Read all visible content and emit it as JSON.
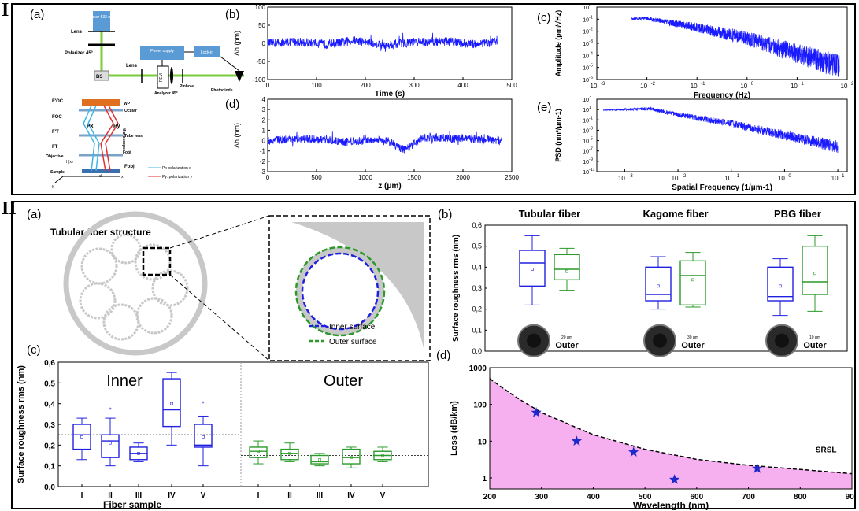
{
  "section_labels": {
    "top": "I",
    "bottom": "II"
  },
  "colors": {
    "signal": "#1a1aff",
    "inner": "#2020e0",
    "outer": "#2a9a2a",
    "loss_fill": "#f7b0ef",
    "grey": "#c8c8c8"
  },
  "top": {
    "a": {
      "label": "(a)",
      "texts": {
        "laser": "Laser 532 nm",
        "lens1": "Lens",
        "polarizer": "Polarizer 45°",
        "lens2": "Lens",
        "bs": "BS",
        "power": "Power supply",
        "lockin": "Lock-in",
        "pem": "PEM",
        "analyzer": "Analyzer 45°",
        "pinhole": "Pinhole",
        "photodiode": "Photodiode",
        "wp": "WP",
        "foc_p": "F'OC",
        "foc": "FOC",
        "ocular": "Ocular",
        "ft_p": "F'T",
        "tube": "Tube lens",
        "ft": "FT",
        "microscope": "Microscope",
        "objective": "Objective",
        "fobj1": "Fobj",
        "hx": "h(x)",
        "fobj2": "Fobj",
        "sample": "Sample",
        "px": "Px",
        "py": "Py",
        "d": "d",
        "legend_px": "Px polarization x",
        "legend_py": "Py: polarization y",
        "y": "y",
        "x": "x"
      }
    },
    "b": {
      "label": "(b)",
      "chart_data": {
        "type": "line",
        "xlabel": "Time (s)",
        "ylabel": "Δh (pm)",
        "xlim": [
          0,
          500
        ],
        "ylim": [
          -100,
          100
        ],
        "xticks": [
          "0",
          "100",
          "200",
          "300",
          "400",
          "500"
        ],
        "yticks": [
          "100",
          "50",
          "0",
          "-50",
          "-100"
        ],
        "series": [
          {
            "x": [
              0,
              60,
              120,
              180,
              240,
              300,
              360,
              420,
              470
            ],
            "values": [
              0,
              5,
              -3,
              8,
              -4,
              3,
              6,
              -2,
              4
            ],
            "noise_amplitude": 12
          }
        ]
      }
    },
    "c": {
      "label": "(c)",
      "chart_data": {
        "type": "line",
        "xlabel": "Frequency (Hz)",
        "ylabel": "Amplitude (pm/√Hz)",
        "scale": "log-log",
        "xlim": [
          0.001,
          100
        ],
        "ylim": [
          1e-06,
          10
        ],
        "xticks": [
          "10-3",
          "10-2",
          "10-1",
          "100",
          "101",
          "102"
        ],
        "yticks": [
          "100",
          "10-1",
          "10-2",
          "10-3",
          "10-4",
          "10-5",
          "10-6"
        ],
        "series": [
          {
            "x": [
              0.005,
              0.01,
              0.1,
              1,
              10,
              70
            ],
            "values": [
              1,
              1.2,
              0.3,
              0.05,
              0.003,
              0.0003
            ]
          }
        ]
      }
    },
    "d": {
      "label": "(d)",
      "chart_data": {
        "type": "line",
        "xlabel": "z (μm)",
        "ylabel": "Δh (nm)",
        "xlim": [
          0,
          2500
        ],
        "ylim": [
          -3,
          4
        ],
        "xticks": [
          "0",
          "500",
          "1000",
          "1500",
          "2000",
          "2500"
        ],
        "yticks": [
          "4",
          "3",
          "2",
          "1",
          "0",
          "-1",
          "-2",
          "-3"
        ],
        "series": [
          {
            "x": [
              0,
              400,
              800,
              1200,
              1400,
              1600,
              2000,
              2400
            ],
            "values": [
              0,
              0.2,
              -0.1,
              0.1,
              -0.9,
              0.3,
              0.2,
              0
            ],
            "noise_amplitude": 0.4
          }
        ]
      }
    },
    "e": {
      "label": "(e)",
      "chart_data": {
        "type": "line",
        "xlabel": "Spatial Frequency (1/μm-1)",
        "ylabel": "PSD (nm²/μm-1)",
        "scale": "log-log",
        "xlim": [
          0.0003,
          15
        ],
        "ylim": [
          1e-11,
          1000
        ],
        "xticks": [
          "10-3",
          "10-2",
          "10-1",
          "100",
          "101"
        ],
        "yticks": [
          "103",
          "101",
          "10-1",
          "10-3",
          "10-5",
          "10-7",
          "10-9",
          "10-11"
        ],
        "series": [
          {
            "x": [
              0.0004,
              0.003,
              0.01,
              0.1,
              1,
              10
            ],
            "values": [
              10,
              30,
              3,
              0.1,
              0.001,
              1e-05
            ]
          }
        ]
      }
    }
  },
  "bottom": {
    "a": {
      "label": "(a)",
      "title": "Tubular fiber structure",
      "legend": [
        {
          "label": "Inner surface",
          "color": "#2020e0"
        },
        {
          "label": "Outer surface",
          "color": "#2a9a2a"
        }
      ]
    },
    "b": {
      "label": "(b)",
      "chart_data": {
        "type": "box",
        "ylabel": "Surface roughness rms (nm)",
        "ylim": [
          0,
          0.6
        ],
        "yticks": [
          "0,0",
          "0,1",
          "0,2",
          "0,3",
          "0,4",
          "0,5",
          "0,6"
        ],
        "groups": [
          {
            "title": "Tubular fiber",
            "scale_label": "20 μm",
            "boxes": [
              {
                "label": "Inner",
                "min": 0.22,
                "q1": 0.31,
                "median": 0.42,
                "q3": 0.48,
                "max": 0.55,
                "mean": 0.39
              },
              {
                "label": "Outer",
                "min": 0.29,
                "q1": 0.34,
                "median": 0.39,
                "q3": 0.46,
                "max": 0.49,
                "mean": 0.38
              }
            ]
          },
          {
            "title": "Kagome fiber",
            "scale_label": "30 μm",
            "boxes": [
              {
                "label": "Inner",
                "min": 0.2,
                "q1": 0.24,
                "median": 0.27,
                "q3": 0.4,
                "max": 0.45,
                "mean": 0.31
              },
              {
                "label": "Outer",
                "min": 0.21,
                "q1": 0.22,
                "median": 0.36,
                "q3": 0.43,
                "max": 0.47,
                "mean": 0.34
              }
            ]
          },
          {
            "title": "PBG fiber",
            "scale_label": "10 μm",
            "boxes": [
              {
                "label": "Inner",
                "min": 0.17,
                "q1": 0.24,
                "median": 0.26,
                "q3": 0.4,
                "max": 0.44,
                "mean": 0.31
              },
              {
                "label": "Outer",
                "min": 0.19,
                "q1": 0.27,
                "median": 0.33,
                "q3": 0.5,
                "max": 0.55,
                "mean": 0.37
              }
            ]
          }
        ]
      }
    },
    "c": {
      "label": "(c)",
      "chart_data": {
        "type": "box",
        "xlabel": "Fiber sample",
        "ylabel": "Surface roughness rms (nm)",
        "ylim": [
          0,
          0.6
        ],
        "yticks": [
          "0,6",
          "0,5",
          "0,4",
          "0,3",
          "0,2",
          "0,1",
          "0,0"
        ],
        "group_titles": [
          "Inner",
          "Outer"
        ],
        "categories": [
          "I",
          "II",
          "III",
          "IV",
          "V",
          "I",
          "II",
          "III",
          "IV",
          "V"
        ],
        "reference_lines": [
          0.25,
          0.15
        ],
        "boxes": [
          {
            "min": 0.13,
            "q1": 0.18,
            "median": 0.25,
            "q3": 0.3,
            "max": 0.33,
            "mean": 0.24,
            "outlier": null
          },
          {
            "min": 0.1,
            "q1": 0.14,
            "median": 0.22,
            "q3": 0.25,
            "max": 0.33,
            "mean": 0.21,
            "outlier": 0.37
          },
          {
            "min": 0.12,
            "q1": 0.13,
            "median": 0.16,
            "q3": 0.19,
            "max": 0.21,
            "mean": 0.16,
            "outlier": null
          },
          {
            "min": 0.2,
            "q1": 0.29,
            "median": 0.37,
            "q3": 0.52,
            "max": 0.55,
            "mean": 0.4,
            "outlier": null
          },
          {
            "min": 0.1,
            "q1": 0.19,
            "median": 0.2,
            "q3": 0.3,
            "max": 0.34,
            "mean": 0.24,
            "outlier": 0.4
          },
          {
            "min": 0.11,
            "q1": 0.14,
            "median": 0.17,
            "q3": 0.19,
            "max": 0.22,
            "mean": 0.17,
            "outlier": null
          },
          {
            "min": 0.12,
            "q1": 0.13,
            "median": 0.16,
            "q3": 0.18,
            "max": 0.21,
            "mean": 0.16,
            "outlier": null
          },
          {
            "min": 0.1,
            "q1": 0.11,
            "median": 0.12,
            "q3": 0.15,
            "max": 0.16,
            "mean": 0.13,
            "outlier": null
          },
          {
            "min": 0.09,
            "q1": 0.11,
            "median": 0.14,
            "q3": 0.18,
            "max": 0.19,
            "mean": 0.14,
            "outlier": null
          },
          {
            "min": 0.12,
            "q1": 0.13,
            "median": 0.15,
            "q3": 0.17,
            "max": 0.19,
            "mean": 0.15,
            "outlier": null
          }
        ]
      }
    },
    "d": {
      "label": "(d)",
      "chart_data": {
        "type": "scatter",
        "xlabel": "Wavelength (nm)",
        "ylabel": "Loss (dB/km)",
        "scale": "log-y",
        "xlim": [
          200,
          900
        ],
        "ylim": [
          0.5,
          1000
        ],
        "xticks": [
          "200",
          "300",
          "400",
          "500",
          "600",
          "700",
          "800",
          "900"
        ],
        "yticks": [
          "1000",
          "100",
          "10",
          "1"
        ],
        "points": [
          {
            "x": 290,
            "y": 60
          },
          {
            "x": 368,
            "y": 10
          },
          {
            "x": 478,
            "y": 5
          },
          {
            "x": 557,
            "y": 0.9
          },
          {
            "x": 717,
            "y": 1.8
          }
        ],
        "curve_label": "SRSL",
        "curve": {
          "x": [
            200,
            250,
            300,
            400,
            500,
            600,
            700,
            800,
            900
          ],
          "y": [
            500,
            160,
            60,
            15,
            6,
            3.2,
            2.2,
            1.7,
            1.3
          ]
        }
      }
    }
  }
}
